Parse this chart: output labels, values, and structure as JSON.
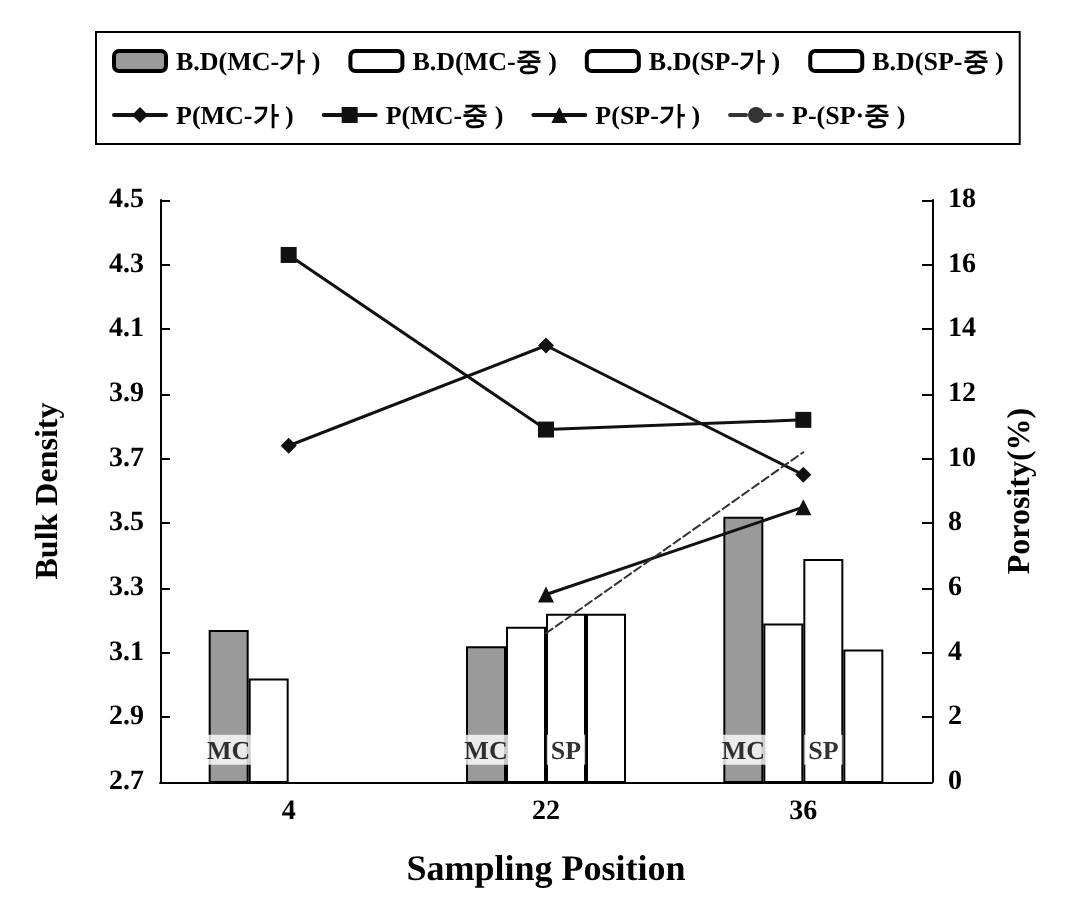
{
  "chart_data": {
    "type": "bar",
    "categories": [
      "4",
      "22",
      "36"
    ],
    "xlabel": "Sampling Position",
    "ylabel": "Bulk Density",
    "y2label": "Porosity(%)",
    "series": [
      {
        "name": "B.D(MC-가 )",
        "color": "#9a9a9a",
        "values": [
          3.17,
          3.12,
          3.52
        ]
      },
      {
        "name": "B.D(MC-중 )",
        "color": "#ffffff",
        "values": [
          3.02,
          3.18,
          3.19
        ]
      },
      {
        "name": "B.D(SP-가 )",
        "color": "#ffffff",
        "values": [
          null,
          3.22,
          3.39
        ]
      },
      {
        "name": "B.D(SP-중 )",
        "color": "#ffffff",
        "values": [
          null,
          3.22,
          3.11
        ]
      },
      {
        "name": "P(MC-가 )",
        "type": "line",
        "axis": "y2",
        "color": "#111111",
        "marker": "diamond",
        "values": [
          10.4,
          13.5,
          9.5
        ]
      },
      {
        "name": "P(MC-중 )",
        "type": "line",
        "axis": "y2",
        "color": "#111111",
        "marker": "square",
        "values": [
          16.3,
          10.9,
          11.2
        ]
      },
      {
        "name": "P(SP-가 )",
        "type": "line",
        "axis": "y2",
        "color": "#111111",
        "marker": "triangle",
        "values": [
          null,
          5.8,
          8.5
        ]
      },
      {
        "name": "P-(SP·중 )",
        "type": "line",
        "axis": "y2",
        "color": "#333333",
        "marker": "none",
        "line_style": "dashed",
        "values": [
          null,
          4.6,
          10.2
        ]
      }
    ],
    "ylim": [
      2.7,
      4.5
    ],
    "yticks": [
      2.7,
      2.9,
      3.1,
      3.3,
      3.5,
      3.7,
      3.9,
      4.1,
      4.3,
      4.5
    ],
    "y2lim": [
      0,
      18
    ],
    "y2ticks": [
      0,
      2,
      4,
      6,
      8,
      10,
      12,
      14,
      16,
      18
    ],
    "annotations": [
      {
        "text": "MC",
        "x": "4",
        "y": 2.8
      },
      {
        "text": "MC",
        "x": "22",
        "y": 2.8
      },
      {
        "text": "SP",
        "x": "22",
        "y": 2.8
      },
      {
        "text": "MC",
        "x": "36",
        "y": 2.8
      },
      {
        "text": "SP",
        "x": "36",
        "y": 2.8
      }
    ],
    "legend": "top",
    "grid": false
  }
}
